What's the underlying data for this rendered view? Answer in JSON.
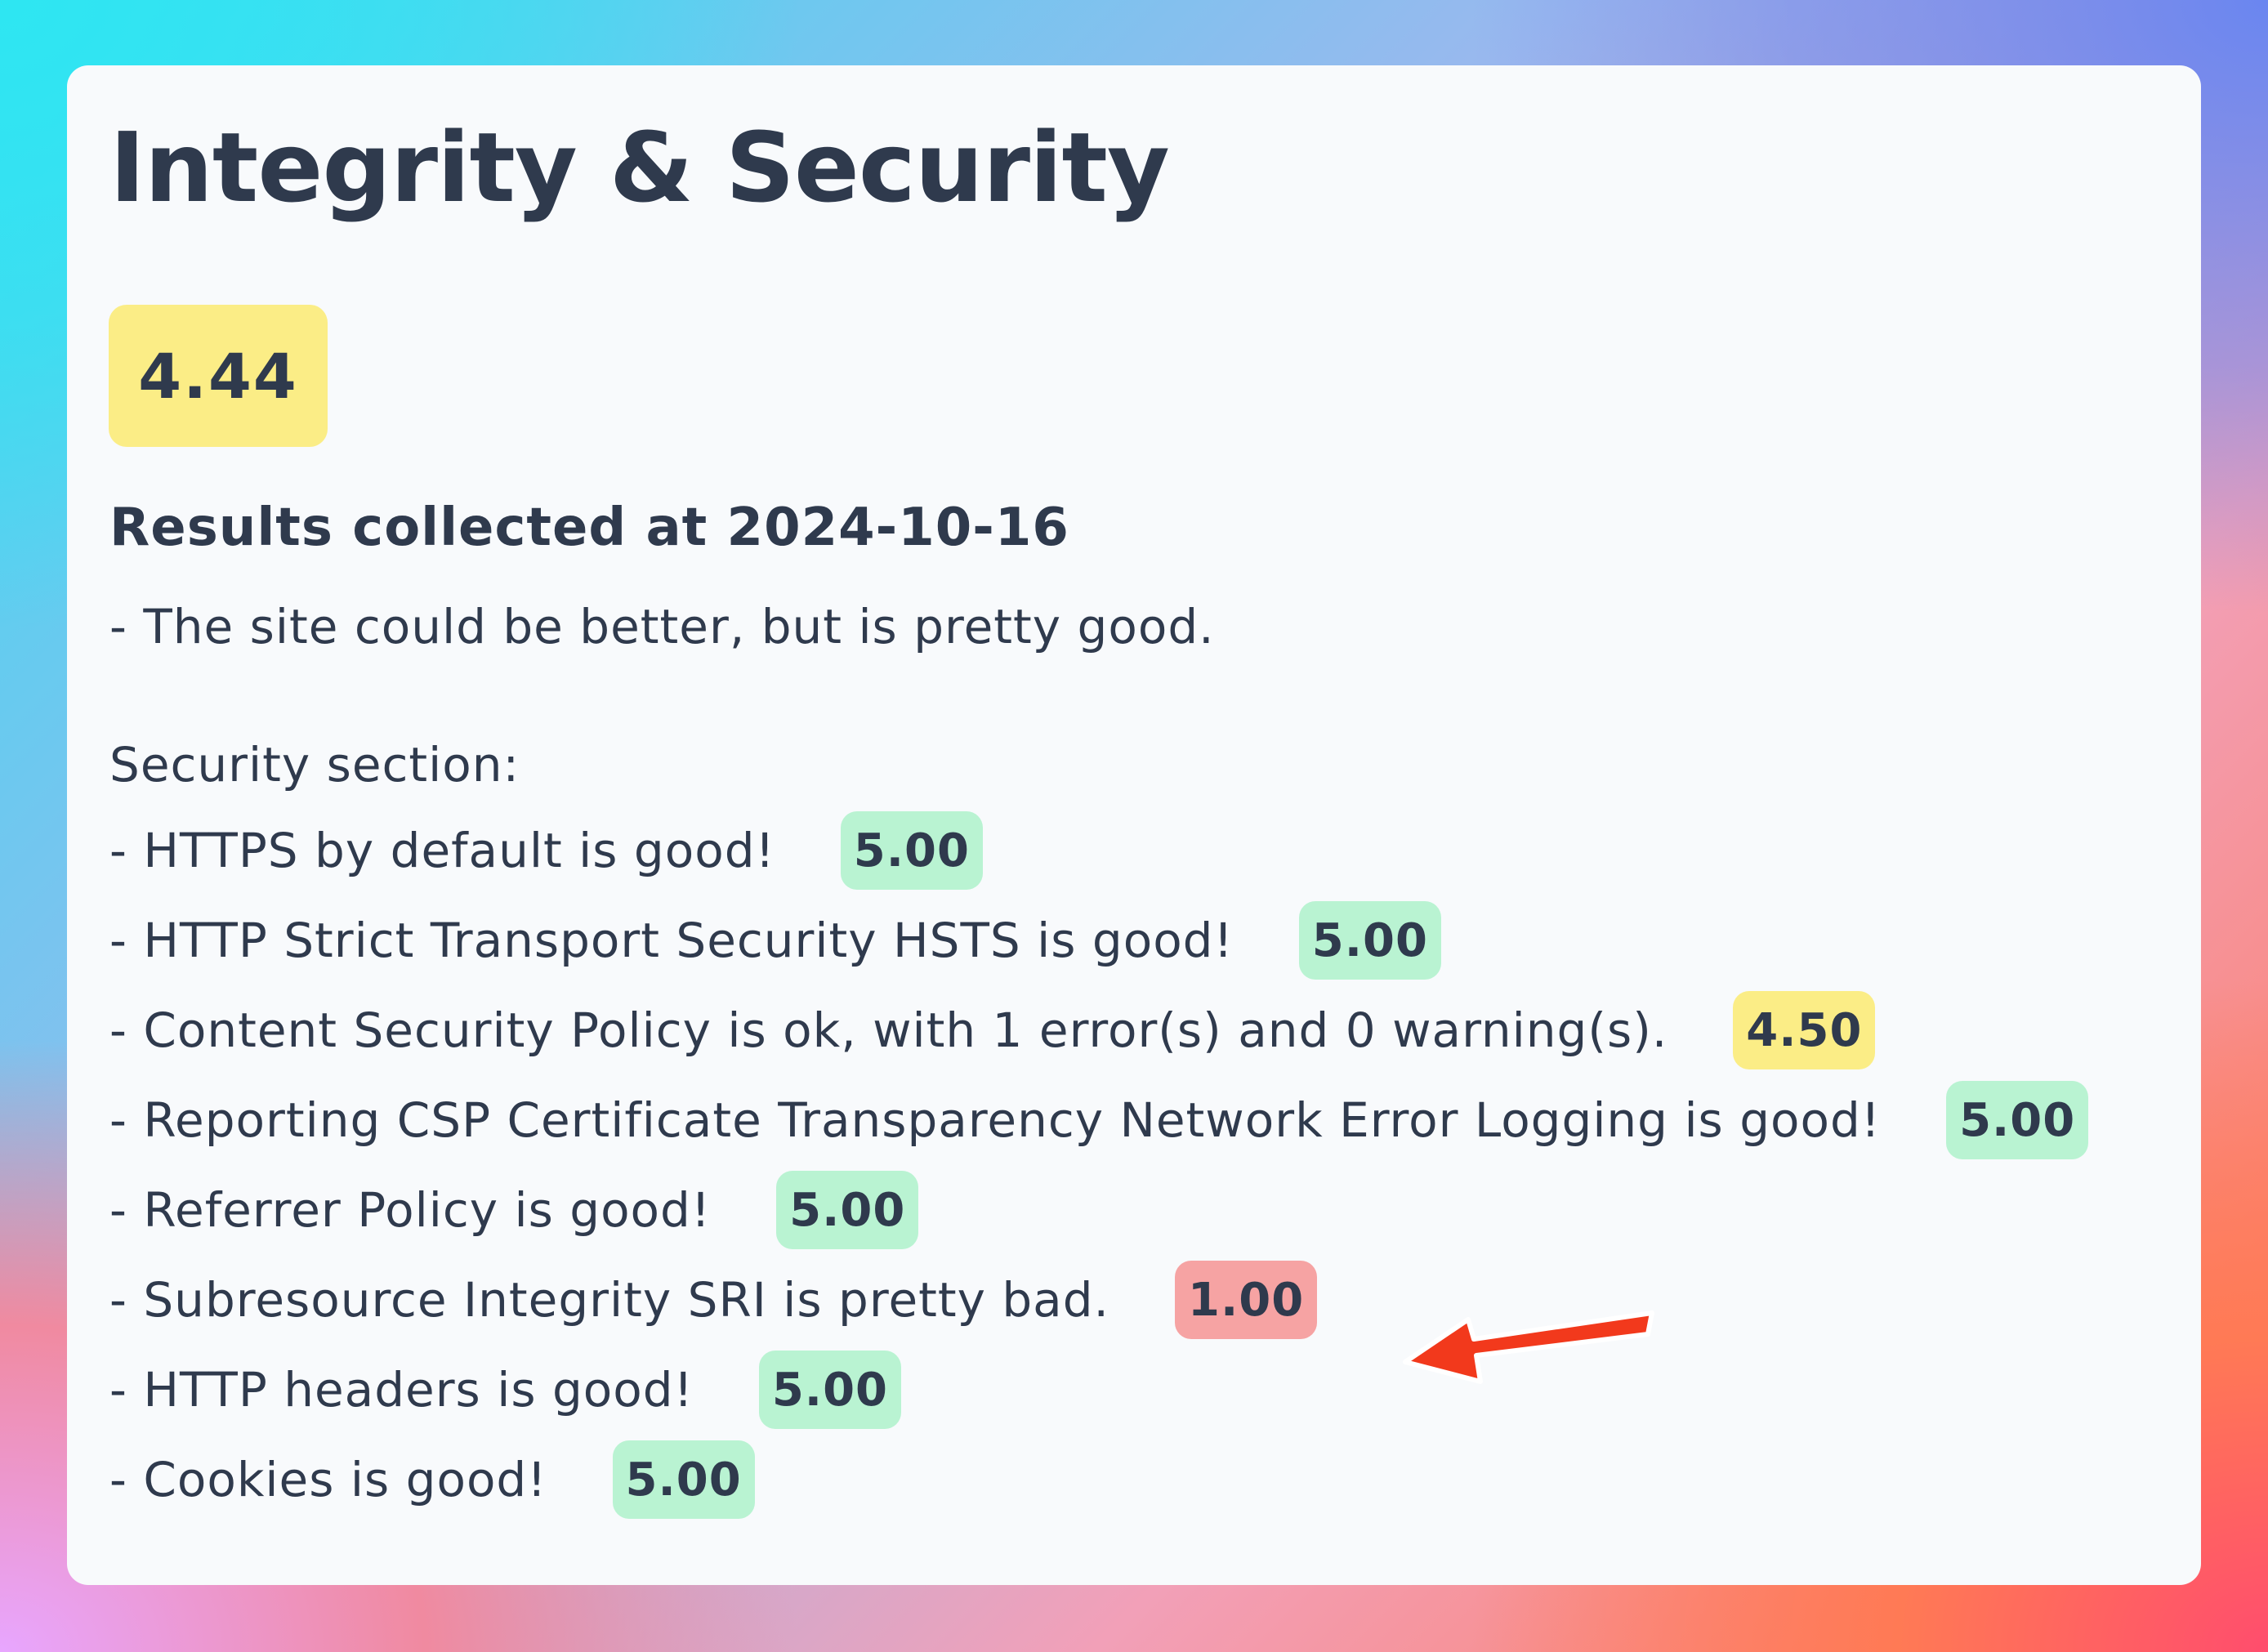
{
  "page": {
    "title": "Integrity & Security",
    "overall_score": "4.44",
    "collected_label": "Results collected at 2024-10-16",
    "summary": "- The site could be better, but is pretty good.",
    "section_label": "Security section:"
  },
  "items": [
    {
      "text": "- HTTPS by default is good!",
      "score": "5.00",
      "status": "good"
    },
    {
      "text": "- HTTP Strict Transport Security HSTS is good!",
      "score": "5.00",
      "status": "good"
    },
    {
      "text": "- Content Security Policy is ok, with 1 error(s) and 0 warning(s).",
      "score": "4.50",
      "status": "ok"
    },
    {
      "text": "- Reporting CSP Certificate Transparency Network Error Logging is good!",
      "score": "5.00",
      "status": "good"
    },
    {
      "text": "- Referrer Policy is good!",
      "score": "5.00",
      "status": "good"
    },
    {
      "text": "- Subresource Integrity SRI is pretty bad.",
      "score": "1.00",
      "status": "bad"
    },
    {
      "text": "- HTTP headers is good!",
      "score": "5.00",
      "status": "good"
    },
    {
      "text": "- Cookies is good!",
      "score": "5.00",
      "status": "good"
    }
  ],
  "colors": {
    "good": "#b9f3d2",
    "ok": "#fbed86",
    "bad": "#f6a3a3",
    "arrow": "#f2391c",
    "text": "#2f3a4d"
  },
  "icons": {
    "annotation": "red-arrow-icon"
  }
}
